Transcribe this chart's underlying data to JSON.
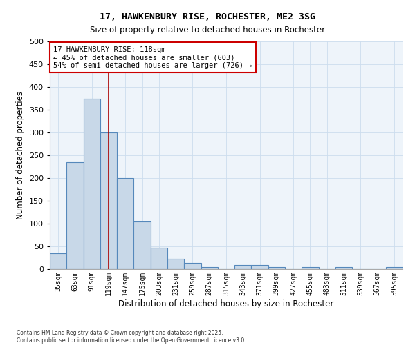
{
  "title_line1": "17, HAWKENBURY RISE, ROCHESTER, ME2 3SG",
  "title_line2": "Size of property relative to detached houses in Rochester",
  "xlabel": "Distribution of detached houses by size in Rochester",
  "ylabel": "Number of detached properties",
  "categories": [
    "35sqm",
    "63sqm",
    "91sqm",
    "119sqm",
    "147sqm",
    "175sqm",
    "203sqm",
    "231sqm",
    "259sqm",
    "287sqm",
    "315sqm",
    "343sqm",
    "371sqm",
    "399sqm",
    "427sqm",
    "455sqm",
    "483sqm",
    "511sqm",
    "539sqm",
    "567sqm",
    "595sqm"
  ],
  "bar_heights": [
    35,
    235,
    375,
    300,
    200,
    105,
    47,
    22,
    13,
    4,
    0,
    9,
    9,
    4,
    0,
    4,
    0,
    4,
    0,
    0,
    4
  ],
  "bar_color": "#c8d8e8",
  "bar_edge_color": "#5588bb",
  "grid_color": "#ccddee",
  "background_color": "#eef4fa",
  "vline_x": 3,
  "vline_color": "#aa0000",
  "ylim": [
    0,
    500
  ],
  "yticks": [
    0,
    50,
    100,
    150,
    200,
    250,
    300,
    350,
    400,
    450,
    500
  ],
  "annotation_text": "17 HAWKENBURY RISE: 118sqm\n← 45% of detached houses are smaller (603)\n54% of semi-detached houses are larger (726) →",
  "annotation_box_color": "#ffffff",
  "annotation_box_edge": "#cc0000",
  "footer_line1": "Contains HM Land Registry data © Crown copyright and database right 2025.",
  "footer_line2": "Contains public sector information licensed under the Open Government Licence v3.0."
}
